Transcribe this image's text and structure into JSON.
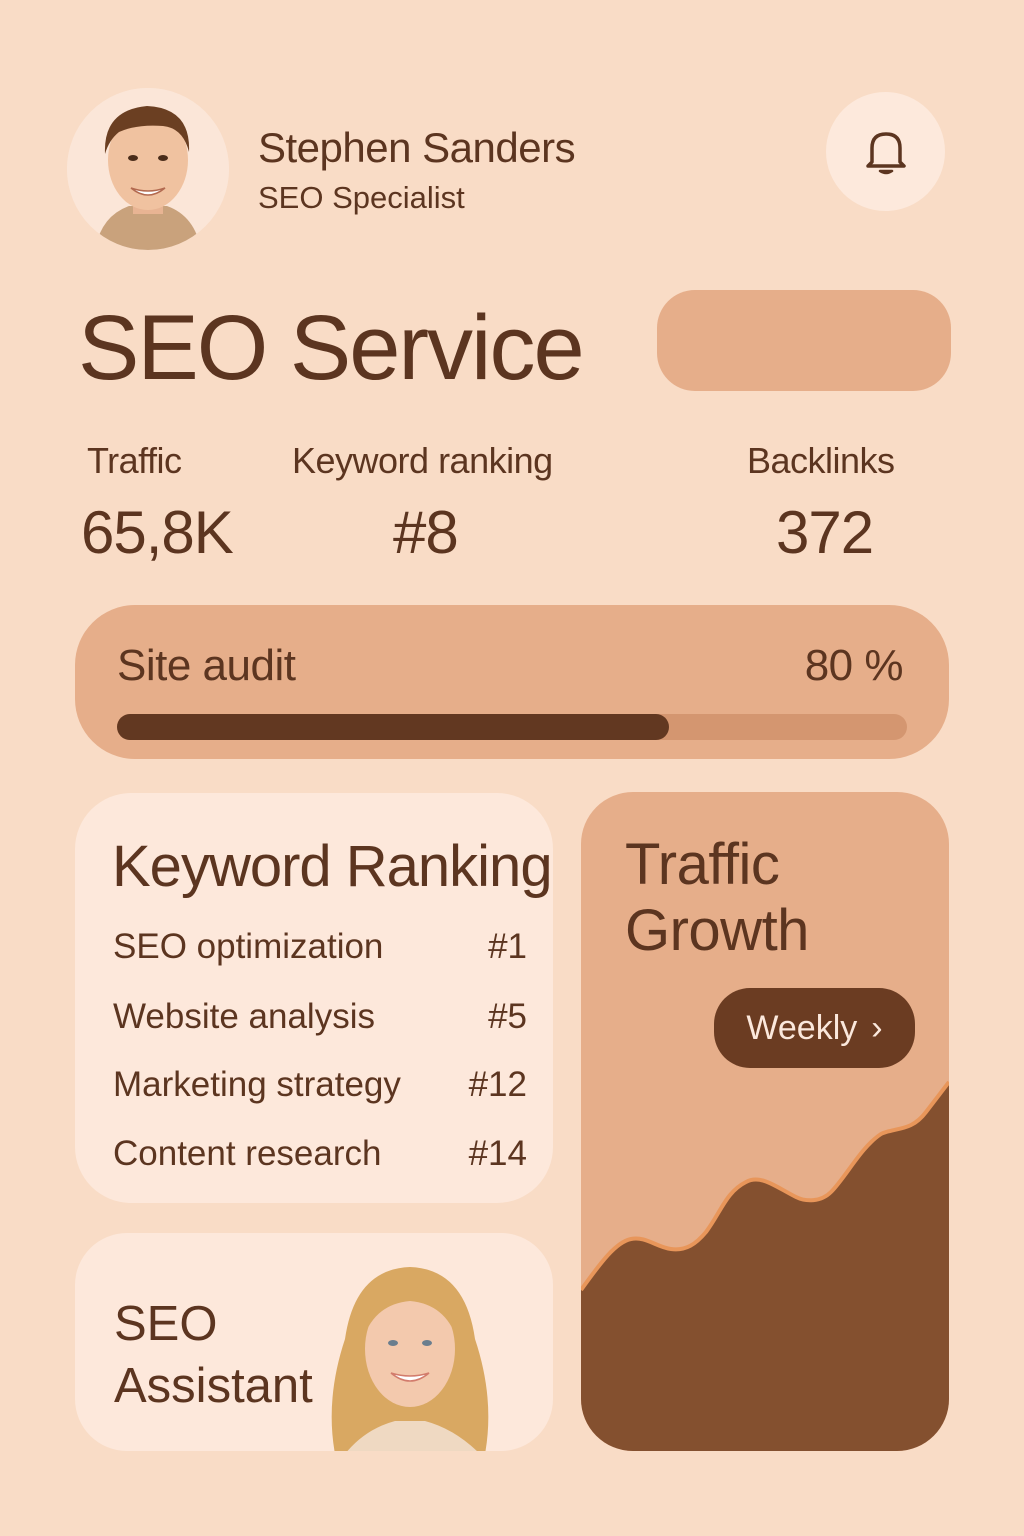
{
  "header": {
    "user_name": "Stephen Sanders",
    "user_role": "SEO Specialist",
    "avatar_icon": "user-avatar-male",
    "notification_icon": "bell-icon"
  },
  "page": {
    "title": "SEO Service"
  },
  "stats": [
    {
      "label": "Traffic",
      "value": "65,8K"
    },
    {
      "label": "Keyword ranking",
      "value": "#8"
    },
    {
      "label": "Backlinks",
      "value": "372"
    }
  ],
  "site_audit": {
    "label": "Site audit",
    "value": "80 %",
    "progress": 80
  },
  "keyword_ranking": {
    "title": "Keyword Ranking",
    "items": [
      {
        "keyword": "SEO optimization",
        "rank": "#1"
      },
      {
        "keyword": "Website analysis",
        "rank": "#5"
      },
      {
        "keyword": "Marketing strategy",
        "rank": "#12"
      },
      {
        "keyword": "Content research",
        "rank": "#14"
      }
    ]
  },
  "traffic_growth": {
    "title_line1": "Traffic",
    "title_line2": "Growth",
    "period_button": "Weekly",
    "chevron": "›"
  },
  "assistant": {
    "title_line1": "SEO",
    "title_line2": "Assistant",
    "photo_icon": "assistant-avatar-female"
  },
  "colors": {
    "background": "#f9dcc6",
    "text": "#5c3520",
    "accent_light": "#e6ae8a",
    "card_light": "#fde8db",
    "accent_dark": "#6b3c22",
    "chart_fill": "#84502f",
    "chart_line": "#e8965a"
  }
}
